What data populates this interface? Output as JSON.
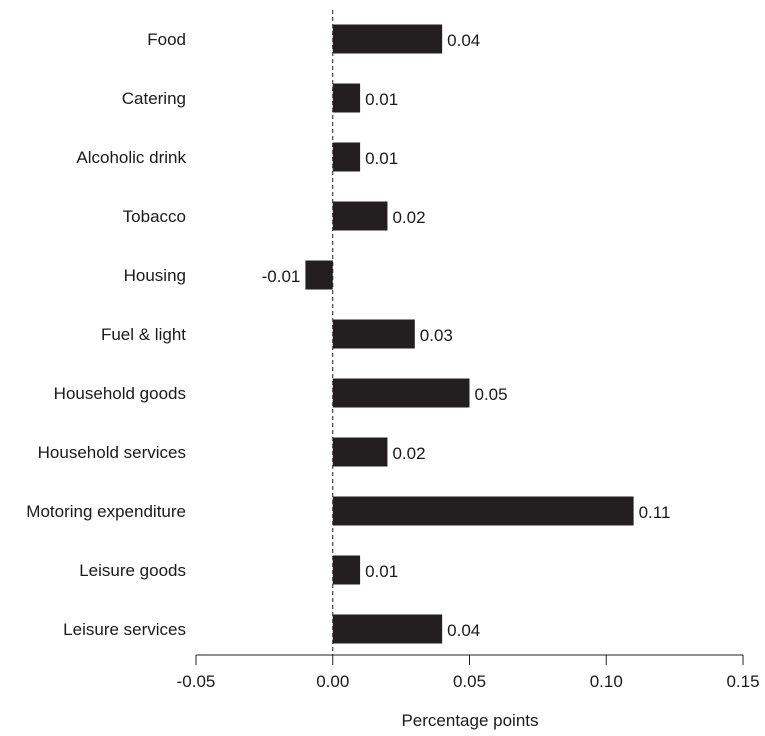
{
  "chart_data": {
    "type": "bar",
    "orientation": "horizontal",
    "categories": [
      "Food",
      "Catering",
      "Alcoholic drink",
      "Tobacco",
      "Housing",
      "Fuel & light",
      "Household goods",
      "Household services",
      "Motoring expenditure",
      "Leisure goods",
      "Leisure services"
    ],
    "values": [
      0.04,
      0.01,
      0.01,
      0.02,
      -0.01,
      0.03,
      0.05,
      0.02,
      0.11,
      0.01,
      0.04
    ],
    "value_labels": [
      "0.04",
      "0.01",
      "0.01",
      "0.02",
      "-0.01",
      "0.03",
      "0.05",
      "0.02",
      "0.11",
      "0.01",
      "0.04"
    ],
    "xlim": [
      -0.05,
      0.15
    ],
    "xticks": [
      -0.05,
      0.0,
      0.05,
      0.1,
      0.15
    ],
    "xtick_labels": [
      "-0.05",
      "0.00",
      "0.05",
      "0.10",
      "0.15"
    ],
    "xlabel": "Percentage points",
    "ylabel": "",
    "title": "",
    "grid": false,
    "bar_color": "#231f20"
  }
}
